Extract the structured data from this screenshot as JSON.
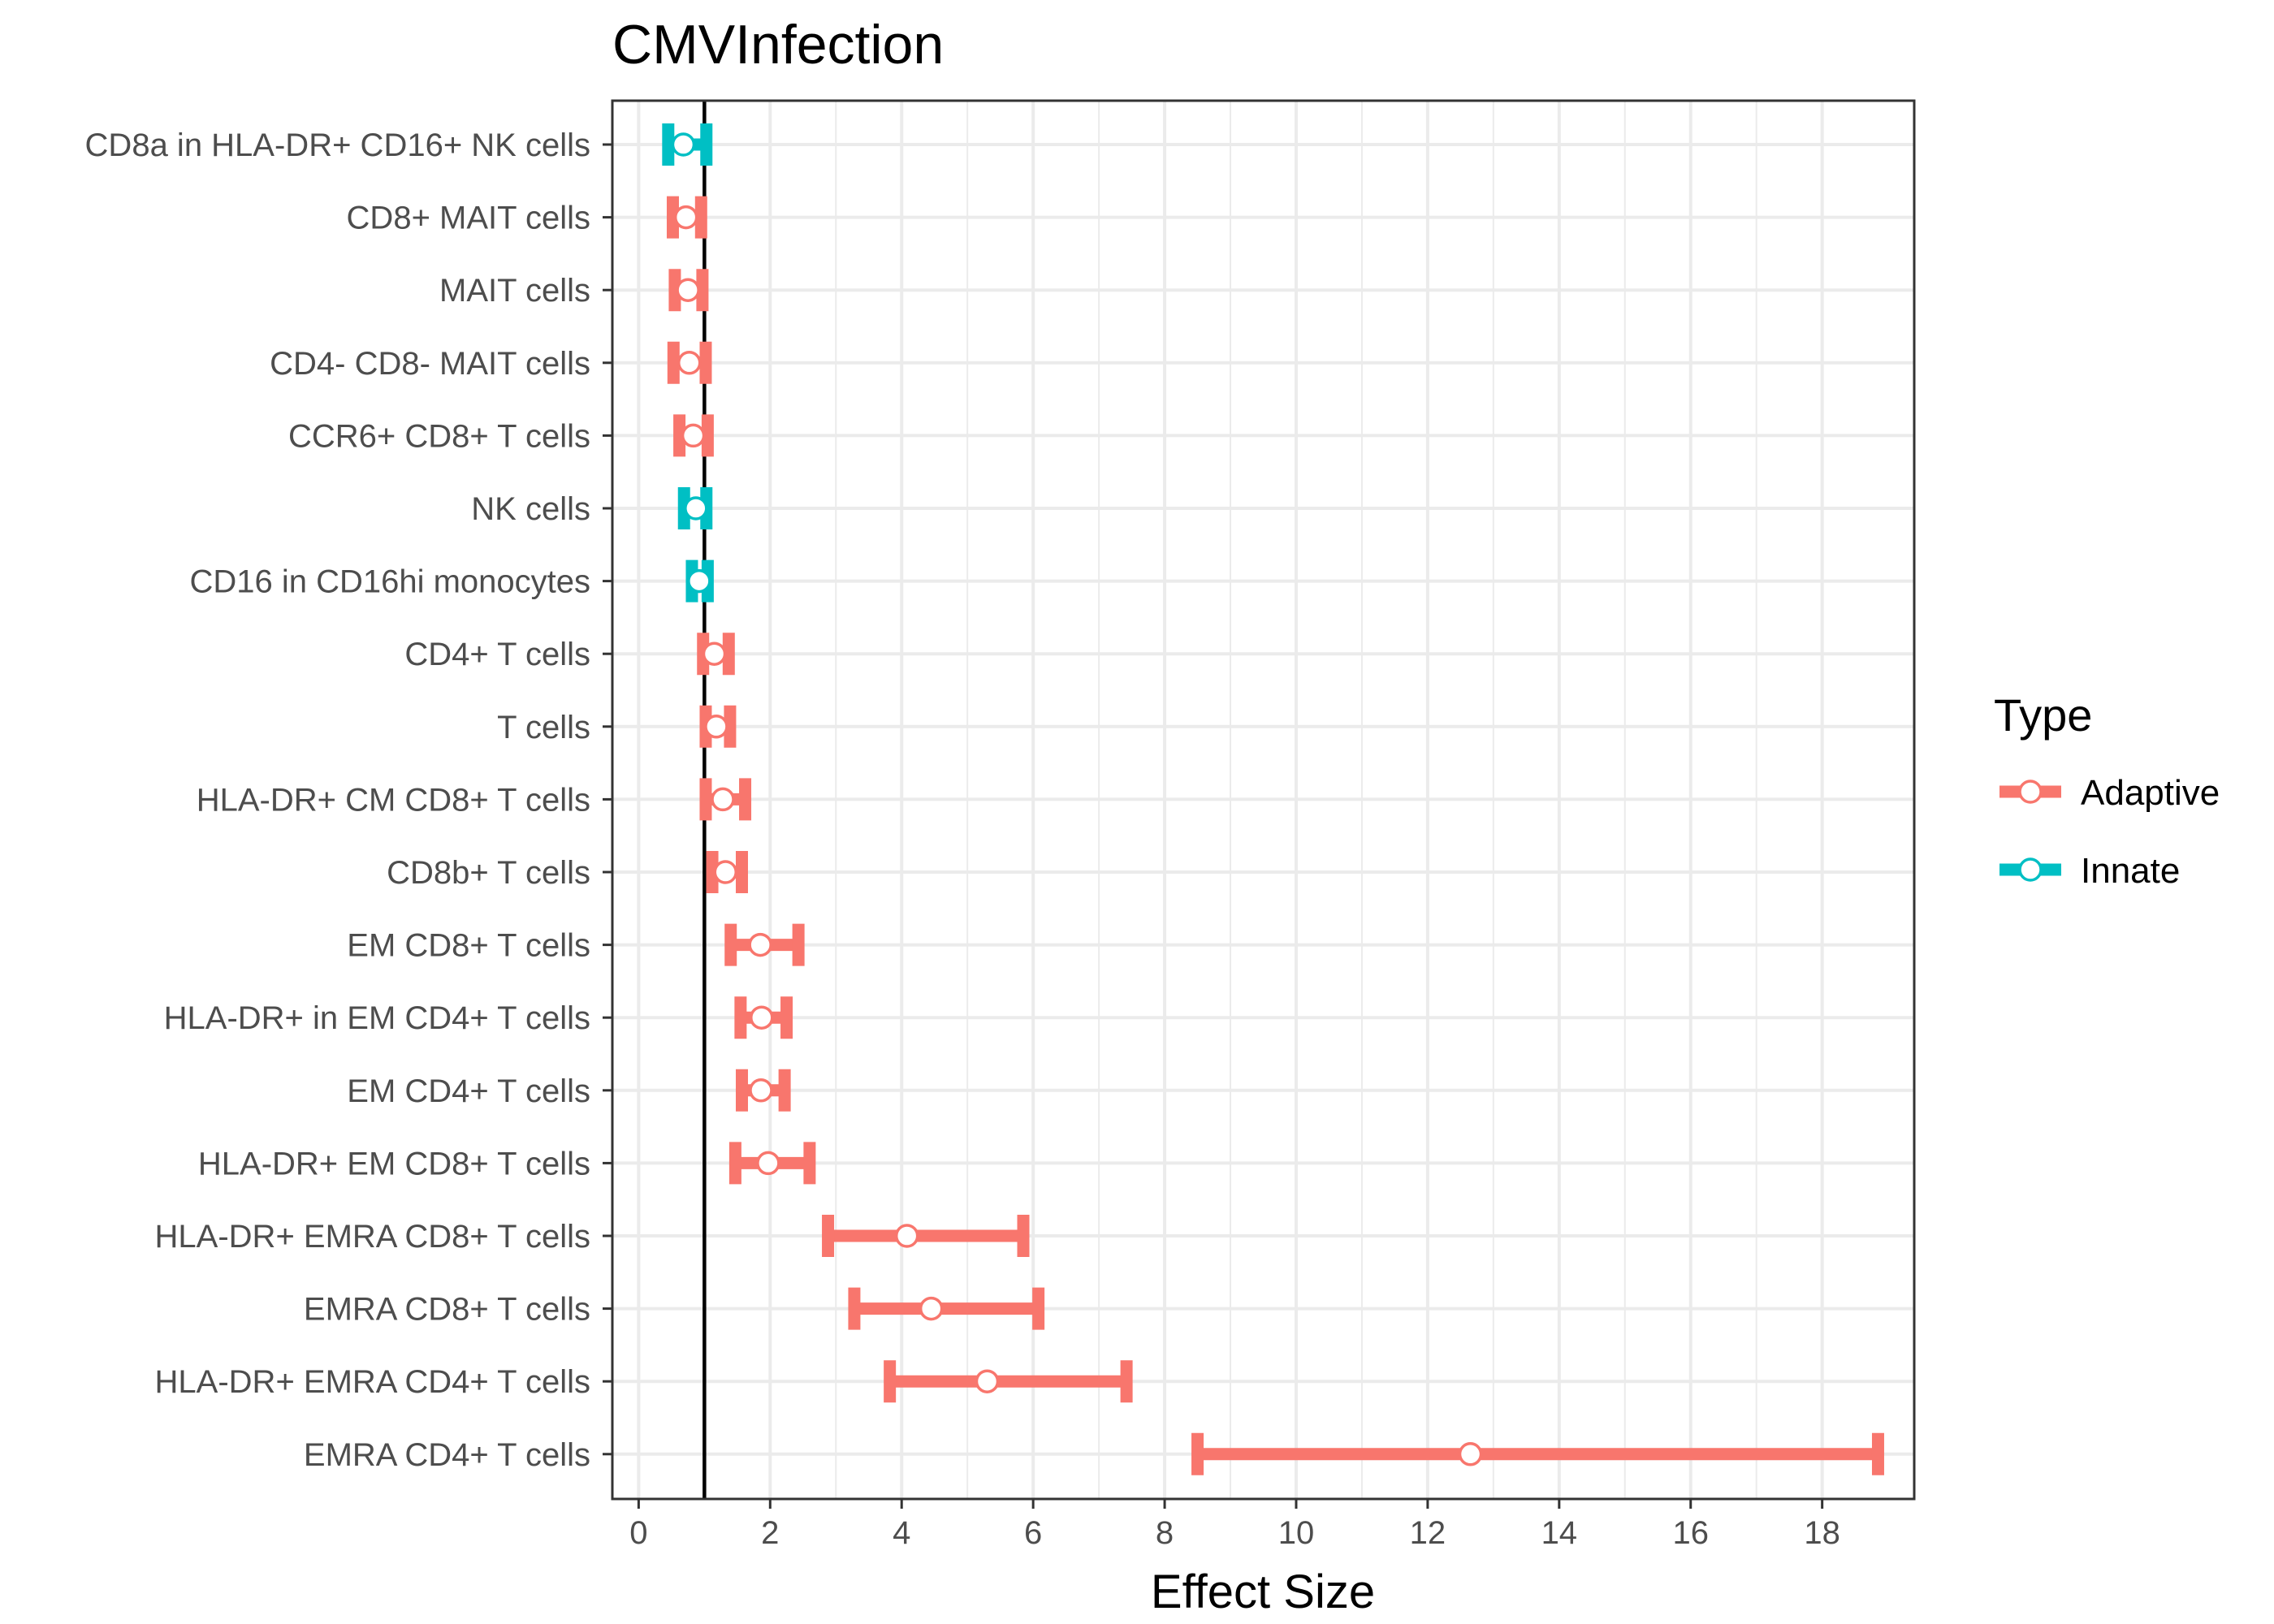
{
  "chart_data": {
    "type": "forest",
    "title": "CMVInfection",
    "xlabel": "Effect Size",
    "ylabel": "",
    "xlim": [
      -0.4,
      19.4
    ],
    "x_ticks": [
      0,
      2,
      4,
      6,
      8,
      10,
      12,
      14,
      16,
      18
    ],
    "x_tick_labels": [
      "0",
      "2",
      "4",
      "6",
      "8",
      "10",
      "12",
      "14",
      "16",
      "18"
    ],
    "reference_line": 1,
    "grid": true,
    "legend": {
      "title": "Type",
      "placement": "right",
      "entries": [
        {
          "label": "Adaptive",
          "color": "#F8766D"
        },
        {
          "label": "Innate",
          "color": "#00BFC4"
        }
      ]
    },
    "categories": [
      "CD8a in HLA-DR+ CD16+ NK cells",
      "CD8+ MAIT cells",
      "MAIT cells",
      "CD4- CD8- MAIT cells",
      "CCR6+ CD8+ T cells",
      "NK cells",
      "CD16 in CD16hi monocytes",
      "CD4+ T cells",
      "T cells",
      "HLA-DR+ CM CD8+ T cells",
      "CD8b+ T cells",
      "EM CD8+ T cells",
      "HLA-DR+ in EM CD4+ T cells",
      "EM CD4+ T cells",
      "HLA-DR+ EM CD8+ T cells",
      "HLA-DR+ EMRA CD8+ T cells",
      "EMRA CD8+ T cells",
      "HLA-DR+ EMRA CD4+ T cells",
      "EMRA CD4+ T cells"
    ],
    "points": [
      {
        "label": "CD8a in HLA-DR+ CD16+ NK cells",
        "type": "Innate",
        "estimate": 0.68,
        "lower": 0.45,
        "upper": 1.03
      },
      {
        "label": "CD8+ MAIT cells",
        "type": "Adaptive",
        "estimate": 0.72,
        "lower": 0.52,
        "upper": 0.95
      },
      {
        "label": "MAIT cells",
        "type": "Adaptive",
        "estimate": 0.75,
        "lower": 0.55,
        "upper": 0.97
      },
      {
        "label": "CD4- CD8- MAIT cells",
        "type": "Adaptive",
        "estimate": 0.77,
        "lower": 0.53,
        "upper": 1.02
      },
      {
        "label": "CCR6+ CD8+ T cells",
        "type": "Adaptive",
        "estimate": 0.83,
        "lower": 0.62,
        "upper": 1.05
      },
      {
        "label": "NK cells",
        "type": "Innate",
        "estimate": 0.87,
        "lower": 0.69,
        "upper": 1.03
      },
      {
        "label": "CD16 in CD16hi monocytes",
        "type": "Innate",
        "estimate": 0.92,
        "lower": 0.81,
        "upper": 1.05
      },
      {
        "label": "CD4+ T cells",
        "type": "Adaptive",
        "estimate": 1.15,
        "lower": 0.98,
        "upper": 1.37
      },
      {
        "label": "T cells",
        "type": "Adaptive",
        "estimate": 1.18,
        "lower": 1.02,
        "upper": 1.39
      },
      {
        "label": "HLA-DR+ CM CD8+ T cells",
        "type": "Adaptive",
        "estimate": 1.28,
        "lower": 1.02,
        "upper": 1.62
      },
      {
        "label": "CD8b+ T cells",
        "type": "Adaptive",
        "estimate": 1.32,
        "lower": 1.12,
        "upper": 1.57
      },
      {
        "label": "EM CD8+ T cells",
        "type": "Adaptive",
        "estimate": 1.85,
        "lower": 1.4,
        "upper": 2.43
      },
      {
        "label": "HLA-DR+ in EM CD4+ T cells",
        "type": "Adaptive",
        "estimate": 1.87,
        "lower": 1.55,
        "upper": 2.25
      },
      {
        "label": "EM CD4+ T cells",
        "type": "Adaptive",
        "estimate": 1.86,
        "lower": 1.57,
        "upper": 2.22
      },
      {
        "label": "HLA-DR+ EM CD8+ T cells",
        "type": "Adaptive",
        "estimate": 1.97,
        "lower": 1.47,
        "upper": 2.6
      },
      {
        "label": "HLA-DR+ EMRA CD8+ T cells",
        "type": "Adaptive",
        "estimate": 4.08,
        "lower": 2.88,
        "upper": 5.85
      },
      {
        "label": "EMRA CD8+ T cells",
        "type": "Adaptive",
        "estimate": 4.45,
        "lower": 3.28,
        "upper": 6.08
      },
      {
        "label": "HLA-DR+ EMRA CD4+ T cells",
        "type": "Adaptive",
        "estimate": 5.3,
        "lower": 3.82,
        "upper": 7.42
      },
      {
        "label": "EMRA CD4+ T cells",
        "type": "Adaptive",
        "estimate": 12.65,
        "lower": 8.5,
        "upper": 18.85
      }
    ]
  }
}
